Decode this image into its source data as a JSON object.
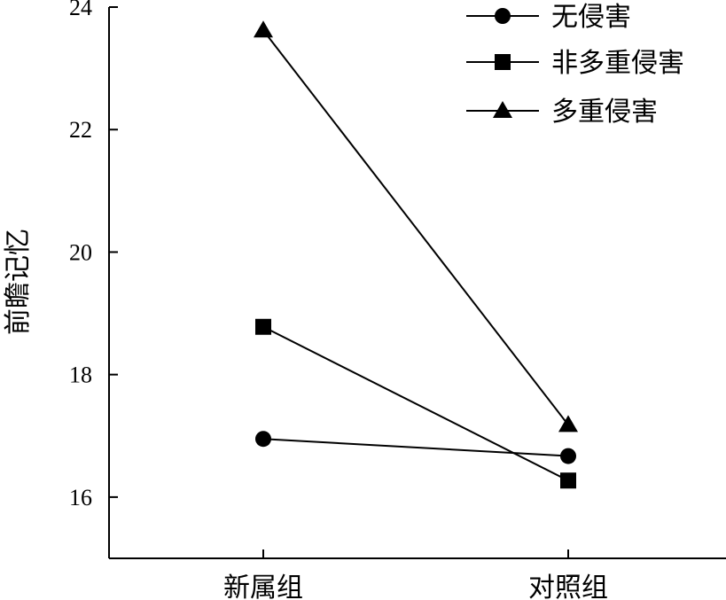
{
  "chart_data": {
    "type": "line",
    "categories": [
      "新属组",
      "对照组"
    ],
    "ylabel": "前瞻记忆",
    "ylim": [
      15,
      24
    ],
    "yticks": [
      16,
      18,
      20,
      22,
      24
    ],
    "legend_position": "top-right",
    "series": [
      {
        "name": "无侵害",
        "marker": "circle",
        "values": [
          16.95,
          16.67
        ]
      },
      {
        "name": "非多重侵害",
        "marker": "square",
        "values": [
          18.78,
          16.27
        ]
      },
      {
        "name": "多重侵害",
        "marker": "triangle",
        "values": [
          23.62,
          17.18
        ]
      }
    ]
  }
}
